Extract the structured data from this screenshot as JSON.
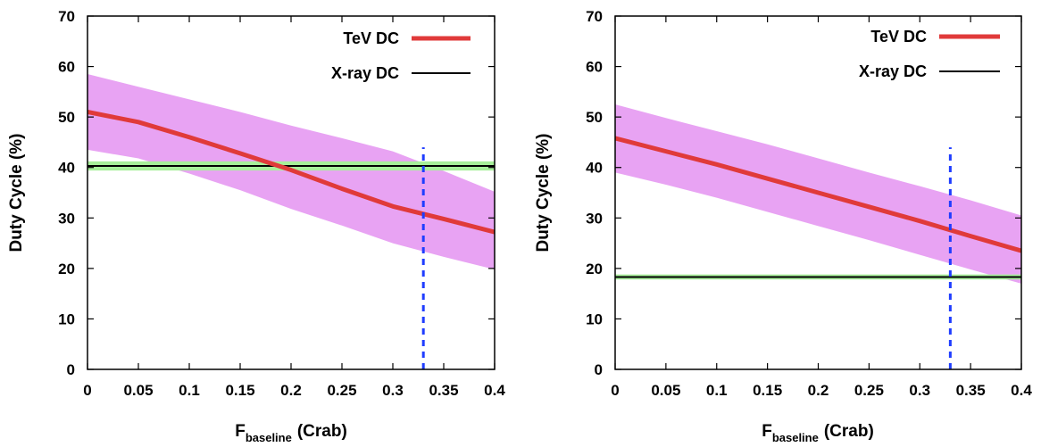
{
  "chart_data": [
    {
      "type": "line",
      "title": "",
      "xlabel": "F",
      "xlabel_subscript": "baseline",
      "xlabel_unit": "(Crab)",
      "ylabel": "Duty Cycle (%)",
      "xlim": [
        0,
        0.4
      ],
      "ylim": [
        0,
        70
      ],
      "xticks": [
        "0",
        "0.05",
        "0.1",
        "0.15",
        "0.2",
        "0.25",
        "0.3",
        "0.35",
        "0.4"
      ],
      "yticks": [
        "0",
        "10",
        "20",
        "30",
        "40",
        "50",
        "60",
        "70"
      ],
      "grid": false,
      "legend_position": "top-right",
      "series": [
        {
          "name": "TeV DC",
          "color": "#e03a3a",
          "x": [
            0,
            0.05,
            0.1,
            0.15,
            0.2,
            0.25,
            0.3,
            0.35,
            0.4
          ],
          "y": [
            51.0,
            49.0,
            46.0,
            42.8,
            39.5,
            35.8,
            32.3,
            29.8,
            27.2
          ],
          "band_color": "#e8a3f3",
          "band_upper": [
            58.5,
            56.0,
            53.5,
            51.0,
            48.3,
            45.8,
            43.2,
            39.3,
            35.2
          ],
          "band_lower": [
            43.5,
            41.8,
            38.8,
            35.5,
            31.8,
            28.5,
            25.0,
            22.3,
            19.8
          ]
        },
        {
          "name": "X-ray DC",
          "color": "#000000",
          "x": [
            0,
            0.4
          ],
          "y": [
            40.3,
            40.3
          ],
          "band_color": "#a7ef9a",
          "band_upper": [
            41.2,
            41.2
          ],
          "band_lower": [
            39.4,
            39.4
          ]
        }
      ],
      "vline": {
        "x": 0.33,
        "y_top": 44,
        "color": "#1f3dff"
      }
    },
    {
      "type": "line",
      "title": "",
      "xlabel": "F",
      "xlabel_subscript": "baseline",
      "xlabel_unit": "(Crab)",
      "ylabel": "Duty Cycle (%)",
      "xlim": [
        0,
        0.4
      ],
      "ylim": [
        0,
        70
      ],
      "xticks": [
        "0",
        "0.05",
        "0.1",
        "0.15",
        "0.2",
        "0.25",
        "0.3",
        "0.35",
        "0.4"
      ],
      "yticks": [
        "0",
        "10",
        "20",
        "30",
        "40",
        "50",
        "60",
        "70"
      ],
      "grid": false,
      "legend_position": "top-right",
      "series": [
        {
          "name": "TeV DC",
          "color": "#e03a3a",
          "x": [
            0,
            0.05,
            0.1,
            0.15,
            0.2,
            0.25,
            0.3,
            0.35,
            0.4
          ],
          "y": [
            45.8,
            43.2,
            40.6,
            37.8,
            35.0,
            32.2,
            29.4,
            26.4,
            23.5
          ],
          "band_color": "#e8a3f3",
          "band_upper": [
            52.5,
            49.8,
            47.2,
            44.6,
            41.8,
            39.0,
            36.3,
            33.5,
            30.5
          ],
          "band_lower": [
            39.0,
            36.6,
            34.0,
            31.2,
            28.4,
            25.6,
            22.7,
            19.8,
            17.0
          ]
        },
        {
          "name": "X-ray DC",
          "color": "#000000",
          "x": [
            0,
            0.4
          ],
          "y": [
            18.3,
            18.3
          ],
          "band_color": "#a7ef9a",
          "band_upper": [
            18.8,
            18.8
          ],
          "band_lower": [
            17.8,
            17.8
          ]
        }
      ],
      "vline": {
        "x": 0.33,
        "y_top": 44,
        "color": "#1f3dff"
      }
    }
  ]
}
